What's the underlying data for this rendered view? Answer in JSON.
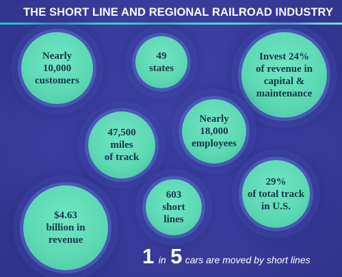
{
  "header": {
    "title": "THE SHORT LINE AND REGIONAL RAILROAD INDUSTRY"
  },
  "bubbles": {
    "customers": "Nearly\n10,000\ncustomers",
    "states": "49\nstates",
    "invest": "Invest 24%\nof revenue in\ncapital &\nmaintenance",
    "miles": "47,500\nmiles\nof track",
    "employees": "Nearly\n18,000\nemployees",
    "track": "29%\nof total track\nin U.S.",
    "revenue": "$4.63\nbillion in\nrevenue",
    "short_lines": "603\nshort\nlines"
  },
  "footer": {
    "num1": "1",
    "word_in": "in",
    "num2": "5",
    "text": "cars are moved by short lines"
  },
  "colors": {
    "background": "#3a3d9a",
    "bubble_fill": "#5bd8b2",
    "bubble_text": "#17344a",
    "title_rule": "#23c9c2",
    "title_text": "#ffffff"
  }
}
